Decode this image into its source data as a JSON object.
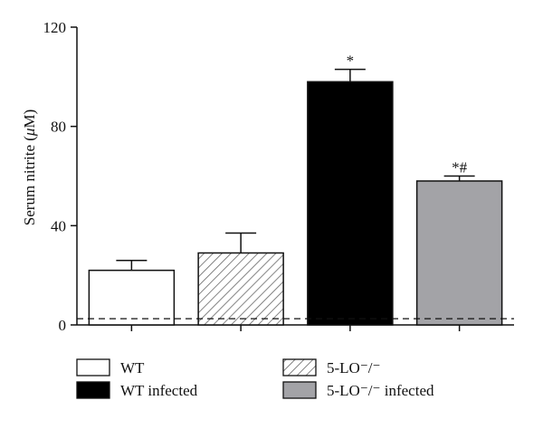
{
  "chart_data": {
    "type": "bar",
    "categories": [
      "WT",
      "5-LO⁻/⁻",
      "WT infected",
      "5-LO⁻/⁻ infected"
    ],
    "values": [
      22,
      29,
      98,
      58
    ],
    "errors": [
      4,
      8,
      5,
      2
    ],
    "annotations": [
      "",
      "",
      "*",
      "*#"
    ],
    "colors": [
      "#ffffff",
      "hatch",
      "#000000",
      "#a3a3a7"
    ],
    "ylabel_prefix": "Serum nitrite (",
    "ylabel_unit_mu": "μ",
    "ylabel_suffix": "M)",
    "ylim": [
      0,
      120
    ],
    "yticks": [
      0,
      40,
      80,
      120
    ],
    "ytick_labels": [
      "0",
      "40",
      "80",
      "120"
    ],
    "reference_line": 2.5,
    "legend": {
      "placement": "bottom",
      "entries": [
        {
          "label": "WT",
          "fill": "#ffffff"
        },
        {
          "label": "5-LO⁻/⁻",
          "fill": "hatch"
        },
        {
          "label": "WT infected",
          "fill": "#000000"
        },
        {
          "label": "5-LO⁻/⁻ infected",
          "fill": "#a3a3a7"
        }
      ]
    }
  }
}
